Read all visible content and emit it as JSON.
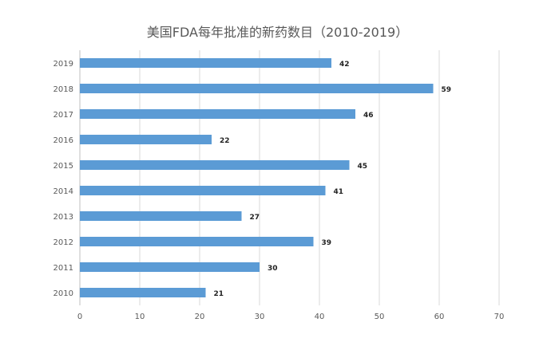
{
  "chart_data": {
    "type": "bar",
    "orientation": "horizontal",
    "title": "美国FDA每年批准的新药数目（2010-2019）",
    "categories": [
      "2019",
      "2018",
      "2017",
      "2016",
      "2015",
      "2014",
      "2013",
      "2012",
      "2011",
      "2010"
    ],
    "values": [
      42,
      59,
      46,
      22,
      45,
      41,
      27,
      39,
      30,
      21
    ],
    "x_ticks": [
      "0",
      "10",
      "20",
      "30",
      "40",
      "50",
      "60",
      "70"
    ],
    "xlim": [
      0,
      70
    ],
    "grid": true,
    "legend": "none",
    "bar_color": "#5b9bd5"
  }
}
